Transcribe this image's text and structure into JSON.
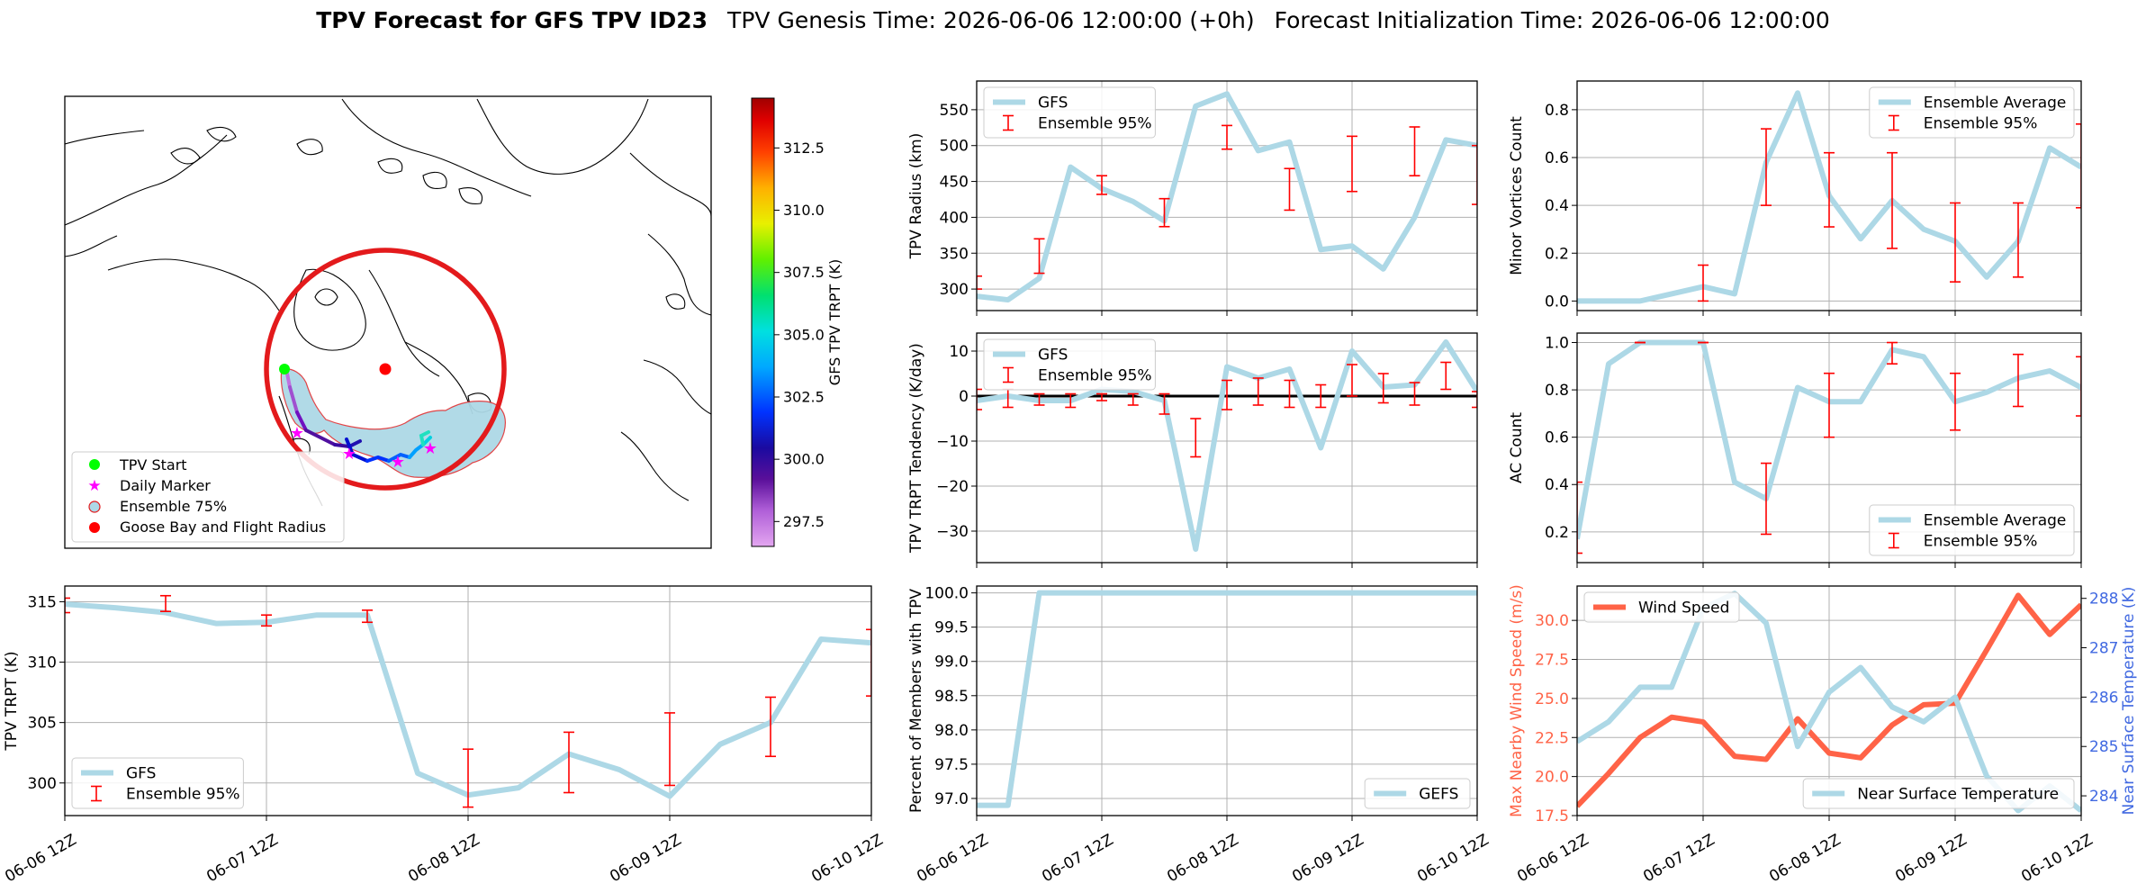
{
  "title": {
    "bold": "TPV Forecast for GFS TPV ID23",
    "genesis": "TPV Genesis Time: 2026-06-06 12:00:00 (+0h)",
    "init": "Forecast Initialization Time: 2026-06-06 12:00:00"
  },
  "colors": {
    "line": "#add8e6",
    "error": "#ff0000",
    "wind": "#ff6347",
    "temp_axis": "#4169e1",
    "ring": "#e31a1c",
    "start": "#00ff00",
    "daily": "#ff00ff"
  },
  "map": {
    "legend": [
      "TPV Start",
      "Daily Marker",
      "Ensemble 75%",
      "Goose Bay and Flight Radius"
    ],
    "colorbar": {
      "label": "GFS TPV TRPT (K)",
      "ticks": [
        "312.5",
        "310.0",
        "307.5",
        "305.0",
        "302.5",
        "300.0",
        "297.5"
      ]
    }
  },
  "chart_data": [
    {
      "id": "radius",
      "type": "line",
      "ylabel": "TPV Radius (km)",
      "ylim": [
        270,
        590
      ],
      "yticks": [
        "550",
        "500",
        "450",
        "400",
        "350",
        "300"
      ],
      "grid": true,
      "legend_position": "upper-left",
      "legend": [
        "GFS",
        "Ensemble 95%"
      ],
      "series": [
        {
          "name": "GFS",
          "x": [
            0,
            1,
            2,
            3,
            4,
            5,
            6,
            7,
            8,
            9,
            10,
            11,
            12,
            13,
            14,
            15,
            16
          ],
          "values": [
            290,
            285,
            315,
            470,
            440,
            422,
            395,
            555,
            572,
            493,
            505,
            355,
            360,
            328,
            400,
            508,
            500
          ]
        }
      ],
      "errorbars": [
        {
          "x": 0,
          "low": 300,
          "high": 318
        },
        {
          "x": 2,
          "low": 322,
          "high": 370
        },
        {
          "x": 4,
          "low": 432,
          "high": 458
        },
        {
          "x": 6,
          "low": 387,
          "high": 426
        },
        {
          "x": 8,
          "low": 495,
          "high": 528
        },
        {
          "x": 10,
          "low": 410,
          "high": 468
        },
        {
          "x": 12,
          "low": 436,
          "high": 513
        },
        {
          "x": 14,
          "low": 458,
          "high": 526
        },
        {
          "x": 16,
          "low": 418,
          "high": 500
        }
      ]
    },
    {
      "id": "minor",
      "type": "line",
      "ylabel": "Minor Vortices Count",
      "ylim": [
        -0.04,
        0.92
      ],
      "yticks": [
        "0.8",
        "0.6",
        "0.4",
        "0.2",
        "0.0"
      ],
      "grid": true,
      "legend_position": "upper-right",
      "legend": [
        "Ensemble Average",
        "Ensemble 95%"
      ],
      "series": [
        {
          "name": "Ensemble Average",
          "x": [
            0,
            1,
            2,
            3,
            4,
            5,
            6,
            7,
            8,
            9,
            10,
            11,
            12,
            13,
            14,
            15,
            16
          ],
          "values": [
            0,
            0,
            0,
            0.03,
            0.06,
            0.03,
            0.58,
            0.87,
            0.44,
            0.26,
            0.42,
            0.3,
            0.25,
            0.1,
            0.25,
            0.64,
            0.56
          ]
        }
      ],
      "errorbars": [
        {
          "x": 4,
          "low": 0,
          "high": 0.15
        },
        {
          "x": 6,
          "low": 0.4,
          "high": 0.72
        },
        {
          "x": 8,
          "low": 0.31,
          "high": 0.62
        },
        {
          "x": 10,
          "low": 0.22,
          "high": 0.62
        },
        {
          "x": 12,
          "low": 0.08,
          "high": 0.41
        },
        {
          "x": 14,
          "low": 0.1,
          "high": 0.41
        },
        {
          "x": 16,
          "low": 0.39,
          "high": 0.74
        }
      ]
    },
    {
      "id": "tendency",
      "type": "line",
      "ylabel": "TPV TRPT Tendency (K/day)",
      "ylim": [
        -37,
        14
      ],
      "yticks": [
        "10",
        "0",
        "−10",
        "−20",
        "−30"
      ],
      "grid": true,
      "zero_line": true,
      "legend_position": "upper-left",
      "legend": [
        "GFS",
        "Ensemble 95%"
      ],
      "series": [
        {
          "name": "GFS",
          "x": [
            0,
            1,
            2,
            3,
            4,
            5,
            6,
            7,
            8,
            9,
            10,
            11,
            12,
            13,
            14,
            15,
            16
          ],
          "values": [
            -1,
            0,
            -1,
            -1,
            1.5,
            1,
            -1,
            -34,
            6.5,
            4,
            6,
            -11.5,
            10,
            2,
            2.5,
            12,
            1
          ]
        }
      ],
      "errorbars": [
        {
          "x": 0,
          "low": -3,
          "high": 1.5
        },
        {
          "x": 1,
          "low": -2.5,
          "high": 1.5
        },
        {
          "x": 2,
          "low": -2,
          "high": 0.5
        },
        {
          "x": 3,
          "low": -2.5,
          "high": 0.5
        },
        {
          "x": 4,
          "low": -1,
          "high": 0.5
        },
        {
          "x": 5,
          "low": -2,
          "high": 0.5
        },
        {
          "x": 6,
          "low": -4,
          "high": 0.5
        },
        {
          "x": 7,
          "low": -13.5,
          "high": -5
        },
        {
          "x": 8,
          "low": -3,
          "high": 3.5
        },
        {
          "x": 9,
          "low": -2,
          "high": 4
        },
        {
          "x": 10,
          "low": -2.5,
          "high": 3.5
        },
        {
          "x": 11,
          "low": -2.5,
          "high": 2.5
        },
        {
          "x": 12,
          "low": 0,
          "high": 7
        },
        {
          "x": 13,
          "low": -1.5,
          "high": 5
        },
        {
          "x": 14,
          "low": -2,
          "high": 3
        },
        {
          "x": 15,
          "low": 1.5,
          "high": 7.5
        },
        {
          "x": 16,
          "low": -2.5,
          "high": 1
        }
      ]
    },
    {
      "id": "ac",
      "type": "line",
      "ylabel": "AC Count",
      "ylim": [
        0.07,
        1.04
      ],
      "yticks": [
        "1.0",
        "0.8",
        "0.6",
        "0.4",
        "0.2"
      ],
      "grid": true,
      "legend_position": "lower-right",
      "legend": [
        "Ensemble Average",
        "Ensemble 95%"
      ],
      "series": [
        {
          "name": "Ensemble Average",
          "x": [
            0,
            1,
            2,
            3,
            4,
            5,
            6,
            7,
            8,
            9,
            10,
            11,
            12,
            13,
            14,
            15,
            16
          ],
          "values": [
            0.17,
            0.91,
            1.0,
            1.0,
            1.0,
            0.41,
            0.34,
            0.81,
            0.75,
            0.75,
            0.97,
            0.94,
            0.75,
            0.79,
            0.85,
            0.88,
            0.81
          ]
        }
      ],
      "errorbars": [
        {
          "x": 0,
          "low": 0.11,
          "high": 0.41
        },
        {
          "x": 2,
          "low": 1.0,
          "high": 1.0
        },
        {
          "x": 4,
          "low": 1.0,
          "high": 1.0
        },
        {
          "x": 6,
          "low": 0.19,
          "high": 0.49
        },
        {
          "x": 8,
          "low": 0.6,
          "high": 0.87
        },
        {
          "x": 10,
          "low": 0.91,
          "high": 1.0
        },
        {
          "x": 12,
          "low": 0.63,
          "high": 0.87
        },
        {
          "x": 14,
          "low": 0.73,
          "high": 0.95
        },
        {
          "x": 16,
          "low": 0.69,
          "high": 0.94
        }
      ]
    },
    {
      "id": "trpt",
      "type": "line",
      "ylabel": "TPV TRPT (K)",
      "ylim": [
        297.3,
        316.3
      ],
      "yticks": [
        "315",
        "310",
        "305",
        "300"
      ],
      "grid": true,
      "legend_position": "lower-left",
      "legend": [
        "GFS",
        "Ensemble 95%"
      ],
      "series": [
        {
          "name": "GFS",
          "x": [
            0,
            1,
            2,
            3,
            4,
            5,
            6,
            7,
            8,
            9,
            10,
            11,
            12,
            13,
            14,
            15,
            16
          ],
          "values": [
            314.8,
            314.5,
            314.1,
            313.2,
            313.3,
            313.9,
            313.9,
            300.8,
            299.0,
            299.6,
            302.4,
            301.1,
            298.9,
            303.2,
            305.0,
            311.9,
            311.6
          ]
        }
      ],
      "errorbars": [
        {
          "x": 0,
          "low": 314.1,
          "high": 315.3
        },
        {
          "x": 2,
          "low": 314.2,
          "high": 315.5
        },
        {
          "x": 4,
          "low": 313.0,
          "high": 313.9
        },
        {
          "x": 6,
          "low": 313.3,
          "high": 314.3
        },
        {
          "x": 8,
          "low": 298.0,
          "high": 302.8
        },
        {
          "x": 10,
          "low": 299.2,
          "high": 304.2
        },
        {
          "x": 12,
          "low": 299.8,
          "high": 305.8
        },
        {
          "x": 14,
          "low": 302.2,
          "high": 307.1
        },
        {
          "x": 16,
          "low": 307.2,
          "high": 312.7
        }
      ]
    },
    {
      "id": "members",
      "type": "line",
      "ylabel": "Percent of Members with TPV",
      "ylim": [
        96.75,
        100.1
      ],
      "yticks": [
        "100.0",
        "99.5",
        "99.0",
        "98.5",
        "98.0",
        "97.5",
        "97.0"
      ],
      "grid": true,
      "legend_position": "lower-right",
      "legend": [
        "GEFS"
      ],
      "series": [
        {
          "name": "GEFS",
          "x": [
            0,
            1,
            2,
            3,
            4,
            5,
            6,
            7,
            8,
            9,
            10,
            11,
            12,
            13,
            14,
            15,
            16
          ],
          "values": [
            96.9,
            96.9,
            100,
            100,
            100,
            100,
            100,
            100,
            100,
            100,
            100,
            100,
            100,
            100,
            100,
            100,
            100
          ]
        }
      ]
    },
    {
      "id": "wind_temp",
      "type": "line",
      "ylabel": "Max Nearby Wind Speed (m/s)",
      "ylabel_right": "Near Surface Temperature (K)",
      "ylim": [
        17.5,
        32.2
      ],
      "ylim_right": [
        283.6,
        288.25
      ],
      "yticks": [
        "30.0",
        "27.5",
        "25.0",
        "22.5",
        "20.0",
        "17.5"
      ],
      "yticks_right": [
        "288",
        "287",
        "286",
        "285",
        "284"
      ],
      "grid": true,
      "legend": [
        "Wind Speed",
        "Near Surface Temperature"
      ],
      "series": [
        {
          "name": "Wind Speed",
          "axis": "left",
          "x": [
            0,
            1,
            2,
            3,
            4,
            5,
            6,
            7,
            8,
            9,
            10,
            11,
            12,
            13,
            14,
            15,
            16
          ],
          "values": [
            18.1,
            20.2,
            22.5,
            23.8,
            23.5,
            21.3,
            21.1,
            23.7,
            21.5,
            21.2,
            23.3,
            24.6,
            24.7,
            28.1,
            31.6,
            29.1,
            31.0
          ]
        },
        {
          "name": "Near Surface Temperature",
          "axis": "right",
          "x": [
            0,
            1,
            2,
            3,
            4,
            5,
            6,
            7,
            8,
            9,
            10,
            11,
            12,
            13,
            14,
            15,
            16
          ],
          "values": [
            285.1,
            285.5,
            286.2,
            286.2,
            287.8,
            288.1,
            287.5,
            285.0,
            286.1,
            286.6,
            285.8,
            285.5,
            286.0,
            284.4,
            283.7,
            284.2,
            283.7
          ]
        }
      ]
    }
  ],
  "xaxis": {
    "ticks": [
      "06-06 12Z",
      "06-07 12Z",
      "06-08 12Z",
      "06-09 12Z",
      "06-10 12Z"
    ],
    "range": [
      0,
      16
    ]
  }
}
